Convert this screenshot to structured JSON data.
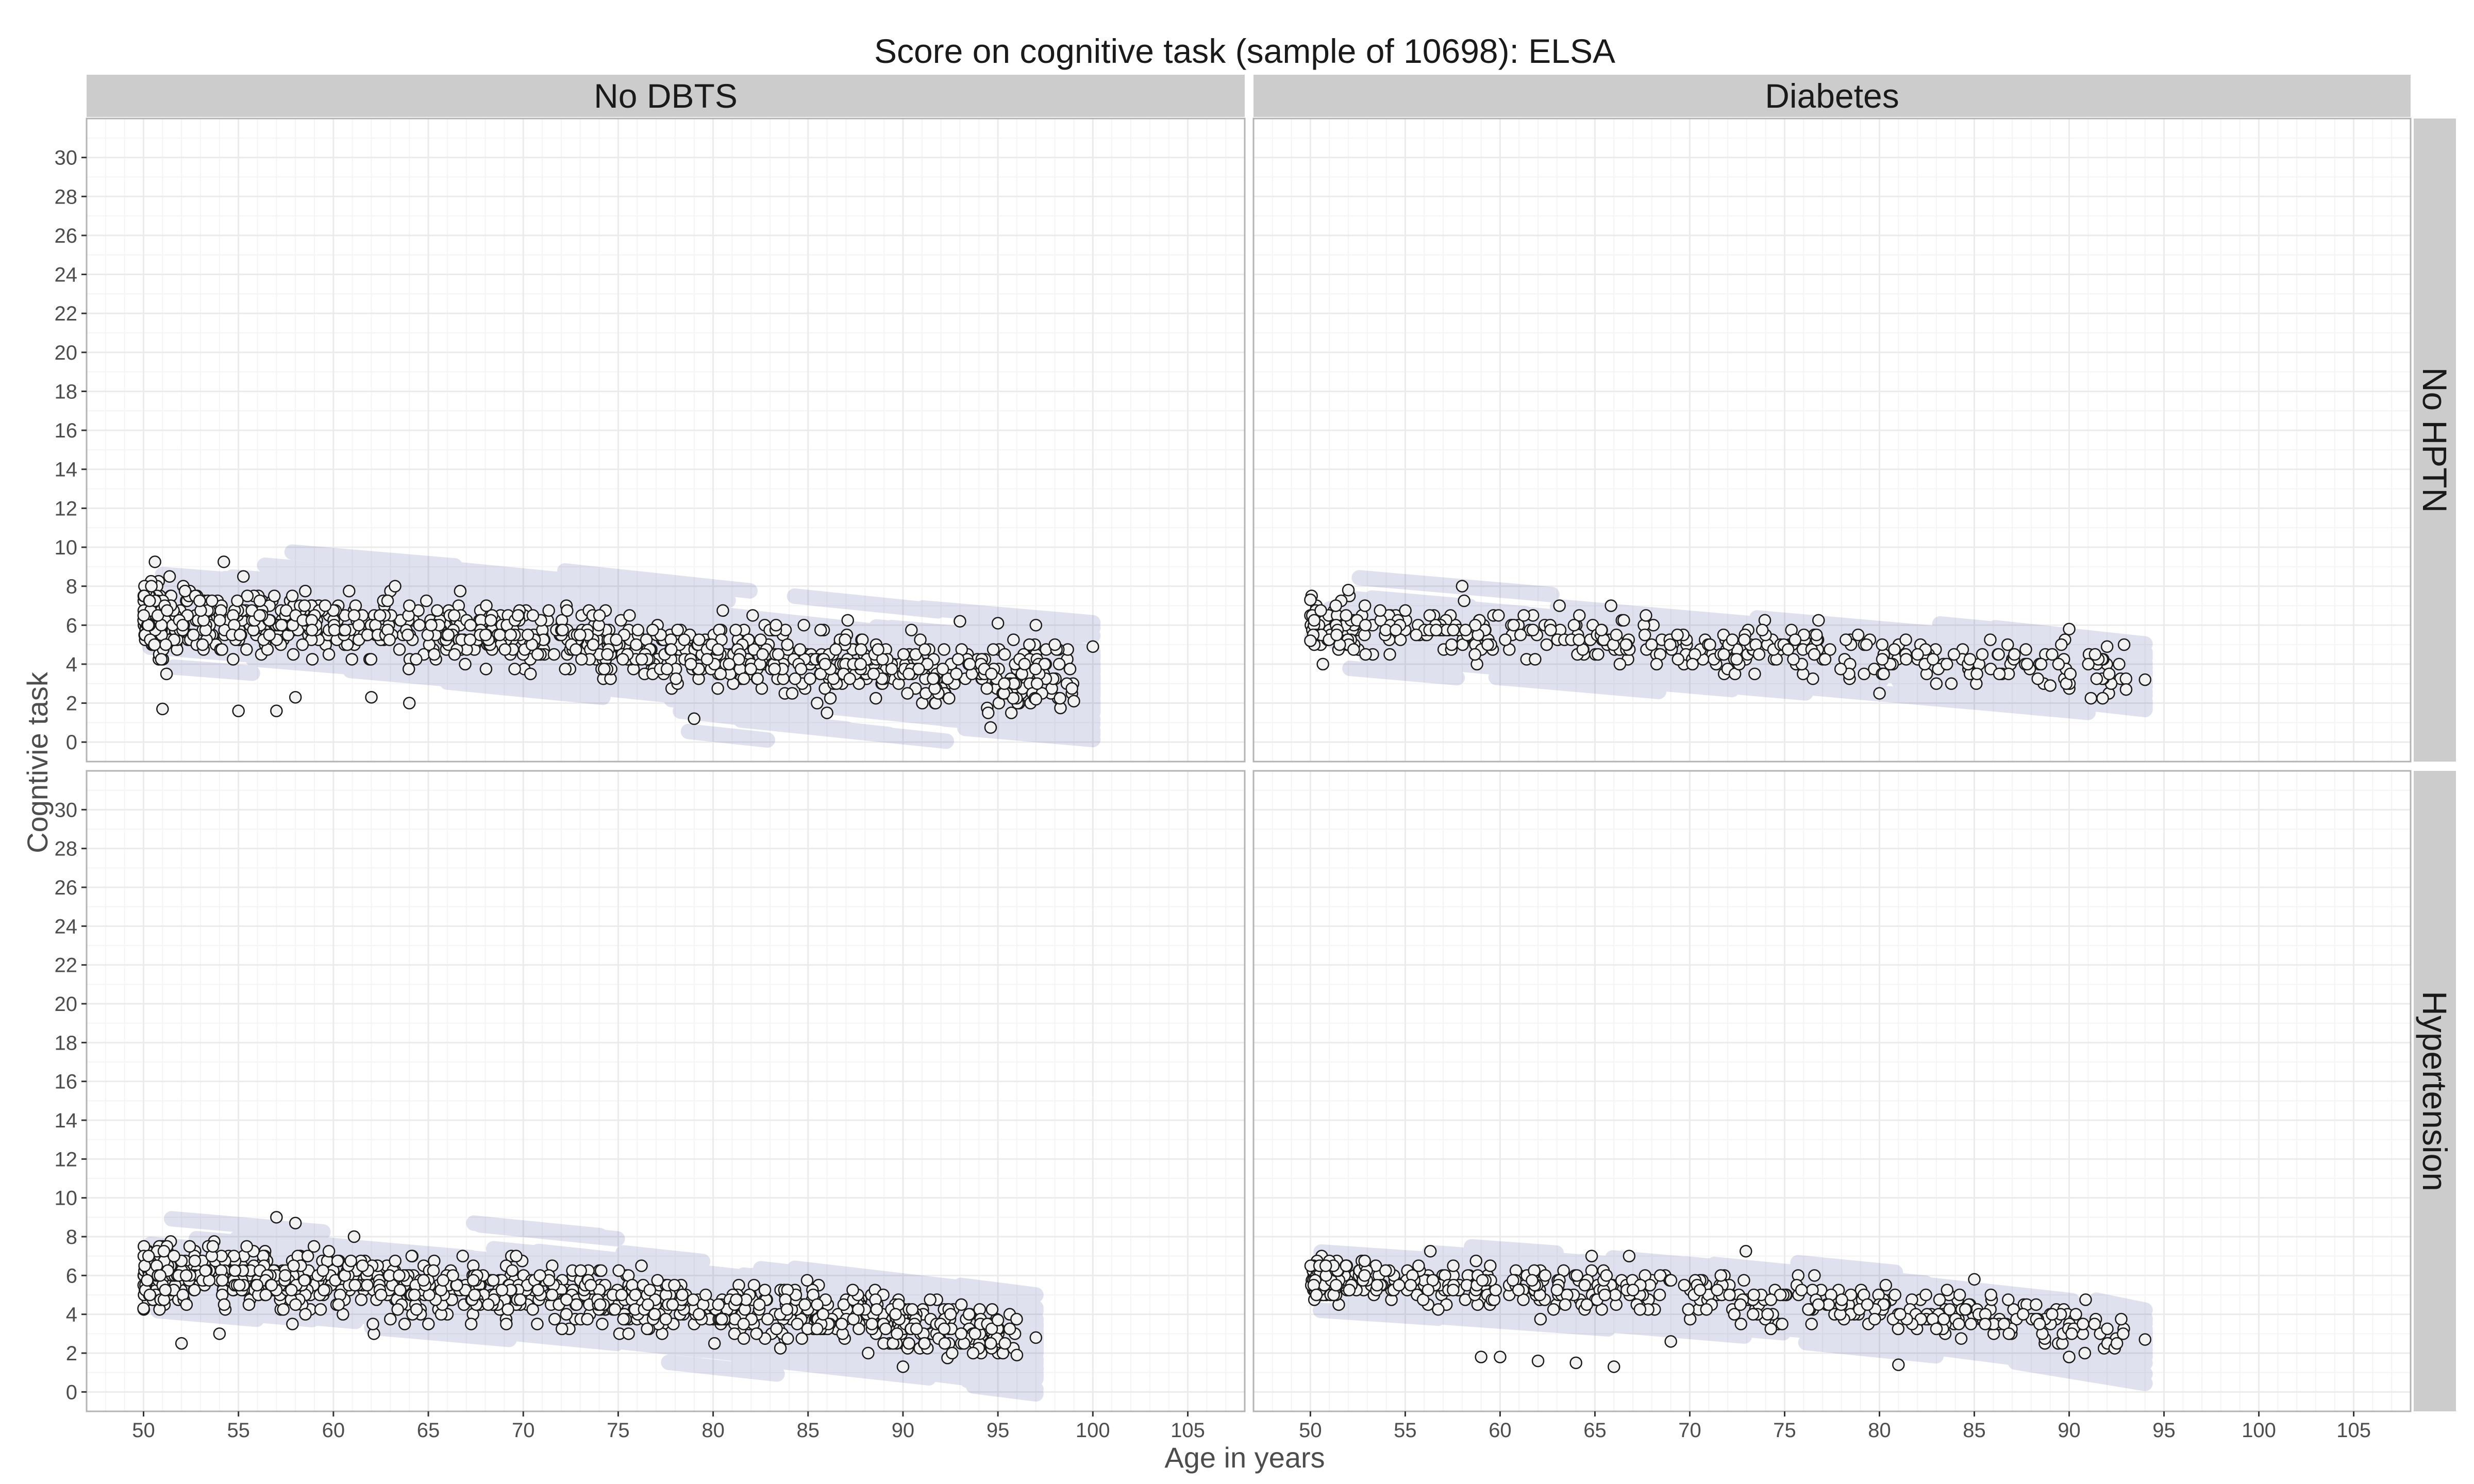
{
  "chart_data": {
    "type": "scatter",
    "title": "Score on cognitive task (sample of 10698): ELSA",
    "xlabel": "Age in years",
    "ylabel": "Cogntivie task",
    "xlim": [
      47,
      108
    ],
    "ylim": [
      -1,
      32
    ],
    "x_ticks": [
      "50",
      "55",
      "60",
      "65",
      "70",
      "75",
      "80",
      "85",
      "90",
      "95",
      "100",
      "105"
    ],
    "y_ticks": [
      "0",
      "2",
      "4",
      "6",
      "8",
      "10",
      "12",
      "14",
      "16",
      "18",
      "20",
      "22",
      "24",
      "26",
      "28",
      "30"
    ],
    "facet_columns": [
      "No DBTS",
      "Diabetes"
    ],
    "facet_rows": [
      "No HPTN",
      "Hypertension"
    ],
    "grid": true,
    "colors": {
      "points_fill": "#f2f2f2",
      "points_stroke": "#1a1a1a",
      "trajectories": "#2e3192",
      "strip": "#cccccc",
      "panel_border": "#b3b3b3",
      "grid": "#ebebeb"
    },
    "panels": [
      {
        "col": "No DBTS",
        "row": "No HPTN",
        "age_range": [
          50,
          100
        ],
        "n_points": 1100,
        "trend": [
          [
            50,
            6.5
          ],
          [
            60,
            6.0
          ],
          [
            70,
            5.4
          ],
          [
            80,
            4.6
          ],
          [
            90,
            3.8
          ],
          [
            100,
            3.2
          ]
        ],
        "spread": 1.35,
        "outliers": [
          [
            51,
            1.7
          ],
          [
            55,
            1.6
          ],
          [
            57,
            1.6
          ],
          [
            58,
            2.3
          ],
          [
            62,
            2.3
          ],
          [
            64,
            2.0
          ],
          [
            79,
            1.2
          ],
          [
            86,
            1.5
          ],
          [
            97,
            2.2
          ],
          [
            99,
            2.1
          ],
          [
            100,
            4.9
          ],
          [
            98,
            5.0
          ],
          [
            97,
            6.0
          ],
          [
            95,
            6.1
          ],
          [
            93,
            6.2
          ]
        ]
      },
      {
        "col": "Diabetes",
        "row": "No HPTN",
        "age_range": [
          50,
          94
        ],
        "n_points": 420,
        "trend": [
          [
            50,
            6.2
          ],
          [
            60,
            5.6
          ],
          [
            70,
            5.0
          ],
          [
            80,
            4.4
          ],
          [
            90,
            3.8
          ],
          [
            94,
            3.4
          ]
        ],
        "spread": 1.1,
        "outliers": [
          [
            50,
            7.3
          ],
          [
            50,
            5.2
          ],
          [
            52,
            7.8
          ],
          [
            58,
            8.0
          ],
          [
            92,
            4.9
          ],
          [
            93,
            2.7
          ],
          [
            94,
            3.2
          ],
          [
            90,
            5.8
          ],
          [
            89,
            2.9
          ]
        ]
      },
      {
        "col": "No DBTS",
        "row": "Hypertension",
        "age_range": [
          50,
          97
        ],
        "n_points": 1100,
        "trend": [
          [
            50,
            6.3
          ],
          [
            60,
            5.7
          ],
          [
            70,
            5.1
          ],
          [
            80,
            4.3
          ],
          [
            90,
            3.5
          ],
          [
            97,
            2.8
          ]
        ],
        "spread": 1.2,
        "outliers": [
          [
            50,
            4.3
          ],
          [
            52,
            2.5
          ],
          [
            54,
            3.0
          ],
          [
            57,
            9.0
          ],
          [
            58,
            8.7
          ],
          [
            90,
            1.3
          ],
          [
            96,
            1.9
          ],
          [
            97,
            2.8
          ],
          [
            95,
            3.7
          ]
        ]
      },
      {
        "col": "Diabetes",
        "row": "Hypertension",
        "age_range": [
          50,
          94
        ],
        "n_points": 520,
        "trend": [
          [
            50,
            5.9
          ],
          [
            60,
            5.5
          ],
          [
            70,
            5.0
          ],
          [
            80,
            4.3
          ],
          [
            90,
            3.5
          ],
          [
            94,
            2.8
          ]
        ],
        "spread": 0.95,
        "outliers": [
          [
            59,
            1.8
          ],
          [
            60,
            1.8
          ],
          [
            62,
            1.6
          ],
          [
            64,
            1.5
          ],
          [
            66,
            1.3
          ],
          [
            69,
            2.6
          ],
          [
            81,
            1.4
          ],
          [
            90,
            1.8
          ],
          [
            94,
            2.7
          ],
          [
            85,
            5.8
          ]
        ]
      }
    ]
  }
}
